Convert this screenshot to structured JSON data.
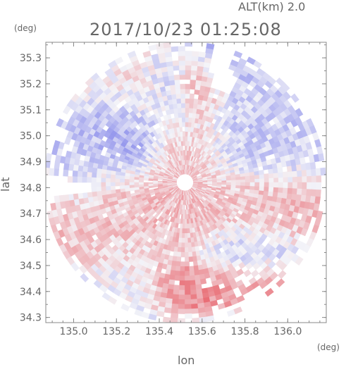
{
  "chart_data": {
    "type": "heatmap",
    "title": "2017/10/23 01:25:08",
    "subtitle": "ALT(km) 2.0",
    "xlabel": "lon",
    "ylabel": "lat",
    "xunit": "(deg)",
    "yunit": "(deg)",
    "xlim": [
      134.87,
      136.18
    ],
    "ylim": [
      34.28,
      35.36
    ],
    "xticks": [
      135.0,
      135.2,
      135.4,
      135.6,
      135.8,
      136.0
    ],
    "yticks": [
      34.3,
      34.4,
      34.5,
      34.6,
      34.7,
      34.8,
      34.9,
      35.0,
      35.1,
      35.2,
      35.3
    ],
    "xtick_labels": [
      "135.0",
      "135.2",
      "135.4",
      "135.6",
      "135.8",
      "136.0"
    ],
    "ytick_labels": [
      "34.3",
      "34.4",
      "34.5",
      "34.6",
      "34.7",
      "34.8",
      "34.9",
      "35.0",
      "35.1",
      "35.2",
      "35.3"
    ],
    "radar_center": [
      135.52,
      34.82
    ],
    "colors": {
      "negative": "#6f72e8",
      "positive": "#e8646c",
      "neutral": "#f4f4f8",
      "axis": "#888888"
    },
    "regions": [
      {
        "lon_min": 134.87,
        "lon_max": 135.15,
        "lat_min": 34.82,
        "lat_max": 35.0,
        "value": -0.35
      },
      {
        "lon_min": 135.15,
        "lon_max": 135.35,
        "lat_min": 34.95,
        "lat_max": 35.1,
        "value": -0.65
      },
      {
        "lon_min": 135.2,
        "lon_max": 135.4,
        "lat_min": 35.08,
        "lat_max": 35.2,
        "value": 0.25
      },
      {
        "lon_min": 135.4,
        "lon_max": 135.52,
        "lat_min": 35.08,
        "lat_max": 35.22,
        "value": -0.45
      },
      {
        "lon_min": 135.52,
        "lon_max": 135.65,
        "lat_min": 35.15,
        "lat_max": 35.24,
        "value": 0.75
      },
      {
        "lon_min": 135.6,
        "lon_max": 135.78,
        "lat_min": 35.2,
        "lat_max": 35.36,
        "value": -0.5
      },
      {
        "lon_min": 135.45,
        "lon_max": 135.62,
        "lat_min": 34.88,
        "lat_max": 35.05,
        "value": 0.45
      },
      {
        "lon_min": 135.62,
        "lon_max": 136.15,
        "lat_min": 34.86,
        "lat_max": 35.05,
        "value": -0.3
      },
      {
        "lon_min": 135.8,
        "lon_max": 136.05,
        "lat_min": 35.0,
        "lat_max": 35.18,
        "value": -0.25
      },
      {
        "lon_min": 134.87,
        "lon_max": 135.4,
        "lat_min": 34.5,
        "lat_max": 34.8,
        "value": 0.35
      },
      {
        "lon_min": 135.4,
        "lon_max": 135.75,
        "lat_min": 34.62,
        "lat_max": 34.8,
        "value": 0.4
      },
      {
        "lon_min": 135.75,
        "lon_max": 136.18,
        "lat_min": 34.66,
        "lat_max": 34.8,
        "value": 0.45
      },
      {
        "lon_min": 135.65,
        "lon_max": 135.95,
        "lat_min": 34.48,
        "lat_max": 34.62,
        "value": -0.4
      },
      {
        "lon_min": 135.4,
        "lon_max": 135.7,
        "lat_min": 34.38,
        "lat_max": 34.46,
        "value": 0.85
      },
      {
        "lon_min": 135.05,
        "lon_max": 135.4,
        "lat_min": 34.3,
        "lat_max": 34.5,
        "value": -0.2
      },
      {
        "lon_min": 135.78,
        "lon_max": 135.92,
        "lat_min": 34.4,
        "lat_max": 34.46,
        "value": 0.8
      }
    ]
  }
}
